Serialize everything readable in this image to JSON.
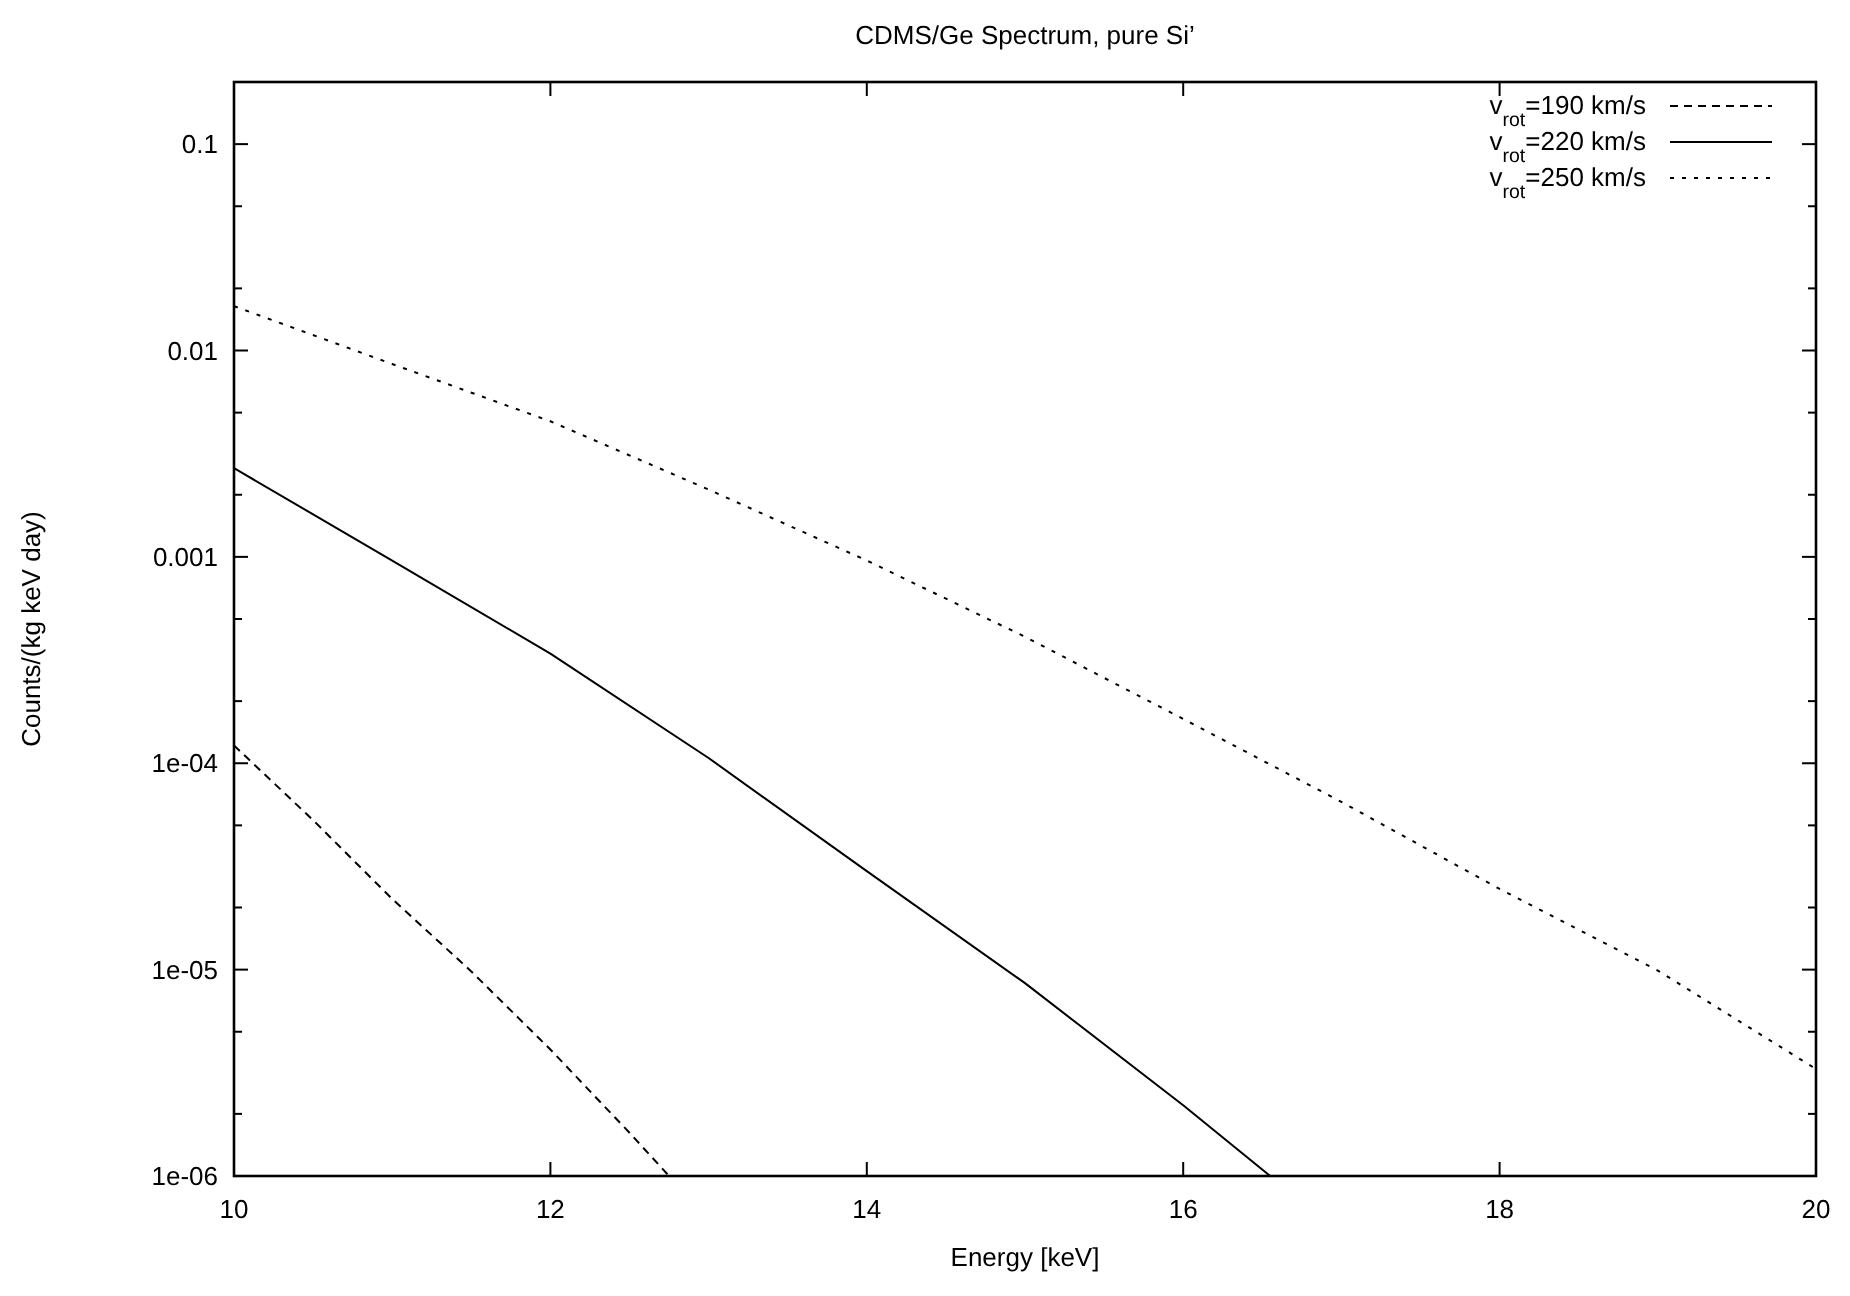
{
  "chart_data": {
    "type": "line",
    "title": "CDMS/Ge Spectrum, pure Si’",
    "xlabel": "Energy [keV]",
    "ylabel": "Counts/(kg keV day)",
    "log": "y",
    "grid": false,
    "legend": "top right",
    "xlim": [
      10,
      20
    ],
    "xticks": [
      10,
      12,
      14,
      16,
      18,
      20
    ],
    "ylim": [
      1e-06,
      0.2
    ],
    "yticks": [
      {
        "value": 1e-06,
        "label": "1e-06"
      },
      {
        "value": 2e-06,
        "label": null
      },
      {
        "value": 5e-06,
        "label": null
      },
      {
        "value": 1e-05,
        "label": "1e-05"
      },
      {
        "value": 2e-05,
        "label": null
      },
      {
        "value": 5e-05,
        "label": null
      },
      {
        "value": 0.0001,
        "label": "1e-04"
      },
      {
        "value": 0.0002,
        "label": null
      },
      {
        "value": 0.0005,
        "label": null
      },
      {
        "value": 0.001,
        "label": "0.001"
      },
      {
        "value": 0.002,
        "label": null
      },
      {
        "value": 0.005,
        "label": null
      },
      {
        "value": 0.01,
        "label": "0.01"
      },
      {
        "value": 0.02,
        "label": null
      },
      {
        "value": 0.05,
        "label": null
      },
      {
        "value": 0.1,
        "label": "0.1"
      }
    ],
    "series": [
      {
        "name": "v$_{rot}$=190 km/s",
        "color": "#000000",
        "line_style": "dashed",
        "x": [
          10,
          10.5,
          11,
          11.5,
          12,
          12.5,
          12.75
        ],
        "values": [
          0.000122,
          5.3e-05,
          2.2e-05,
          9.8e-06,
          4.1e-06,
          1.62e-06,
          1e-06
        ]
      },
      {
        "name": "v$_{rot}$=220 km/s",
        "color": "#000000",
        "line_style": "solid",
        "x": [
          10,
          11,
          12,
          13,
          14,
          15,
          16,
          16.55
        ],
        "values": [
          0.00269,
          0.00096,
          0.00034,
          0.000106,
          3e-05,
          8.6e-06,
          2.2e-06,
          1e-06
        ]
      },
      {
        "name": "v$_{rot}$=250 km/s",
        "color": "#000000",
        "line_style": "dotted",
        "x": [
          10,
          11,
          12,
          13,
          14,
          15,
          16,
          17,
          18,
          19,
          20
        ],
        "values": [
          0.0164,
          0.0086,
          0.00454,
          0.00212,
          0.00096,
          0.00041,
          0.000164,
          6.5e-05,
          2.46e-05,
          9.9e-06,
          3.3e-06
        ]
      }
    ]
  }
}
